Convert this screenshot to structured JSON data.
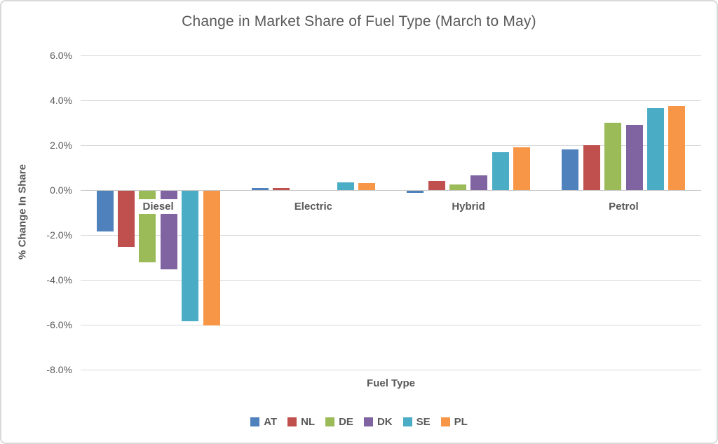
{
  "chart_data": {
    "type": "bar",
    "title": "Change in Market Share of Fuel Type (March to May)",
    "xlabel": "Fuel Type",
    "ylabel": "% Change In Share",
    "categories": [
      "Diesel",
      "Electric",
      "Hybrid",
      "Petrol"
    ],
    "series": [
      {
        "name": "AT",
        "color": "#4F81BD",
        "values": [
          -1.8,
          0.1,
          -0.1,
          1.8
        ]
      },
      {
        "name": "NL",
        "color": "#C0504D",
        "values": [
          -2.5,
          0.1,
          0.4,
          2.0
        ]
      },
      {
        "name": "DE",
        "color": "#9BBB59",
        "values": [
          -3.2,
          0.0,
          0.25,
          3.0
        ]
      },
      {
        "name": "DK",
        "color": "#8064A2",
        "values": [
          -3.5,
          0.0,
          0.65,
          2.9
        ]
      },
      {
        "name": "SE",
        "color": "#4BACC6",
        "values": [
          -5.8,
          0.35,
          1.7,
          3.65
        ]
      },
      {
        "name": "PL",
        "color": "#F79646",
        "values": [
          -6.0,
          0.3,
          1.9,
          3.75
        ]
      }
    ],
    "y_ticks": [
      "6.0%",
      "4.0%",
      "2.0%",
      "0.0%",
      "-2.0%",
      "-4.0%",
      "-6.0%",
      "-8.0%"
    ],
    "ylim": [
      -8.0,
      6.0
    ],
    "y_tick_step": 2.0,
    "grid": true,
    "legend_position": "bottom",
    "colors": {
      "text_gray": "#595959",
      "gridline": "#D9D9D9"
    }
  }
}
